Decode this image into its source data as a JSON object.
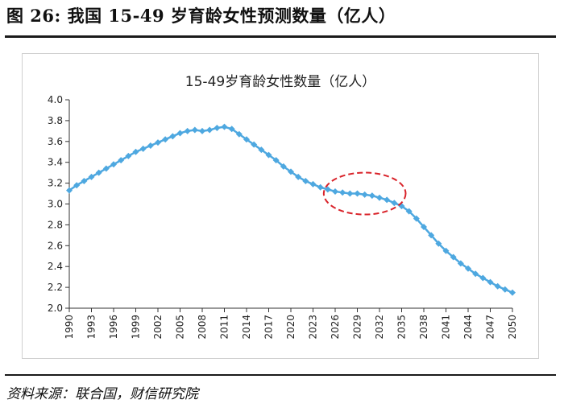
{
  "figure": {
    "title": "图 26:  我国 15-49 岁育龄女性预测数量（亿人）",
    "source": "资料来源：联合国，财信研究院"
  },
  "colors": {
    "series": "#4ea8e0",
    "highlight": "#d9232a",
    "axis": "#333333"
  },
  "chart_data": {
    "type": "line",
    "title": "15-49岁育龄女性数量（亿人）",
    "xlabel": "",
    "ylabel": "",
    "ylim": [
      2.0,
      4.0
    ],
    "yticks": [
      "2.0",
      "2.2",
      "2.4",
      "2.6",
      "2.8",
      "3.0",
      "3.2",
      "3.4",
      "3.6",
      "3.8",
      "4.0"
    ],
    "xticks": [
      "1990",
      "1993",
      "1996",
      "1999",
      "2002",
      "2005",
      "2008",
      "2011",
      "2014",
      "2017",
      "2020",
      "2023",
      "2026",
      "2029",
      "2032",
      "2035",
      "2038",
      "2041",
      "2044",
      "2047",
      "2050"
    ],
    "x": [
      1990,
      1991,
      1992,
      1993,
      1994,
      1995,
      1996,
      1997,
      1998,
      1999,
      2000,
      2001,
      2002,
      2003,
      2004,
      2005,
      2006,
      2007,
      2008,
      2009,
      2010,
      2011,
      2012,
      2013,
      2014,
      2015,
      2016,
      2017,
      2018,
      2019,
      2020,
      2021,
      2022,
      2023,
      2024,
      2025,
      2026,
      2027,
      2028,
      2029,
      2030,
      2031,
      2032,
      2033,
      2034,
      2035,
      2036,
      2037,
      2038,
      2039,
      2040,
      2041,
      2042,
      2043,
      2044,
      2045,
      2046,
      2047,
      2048,
      2049,
      2050
    ],
    "series": [
      {
        "values": [
          3.13,
          3.18,
          3.22,
          3.26,
          3.3,
          3.34,
          3.38,
          3.42,
          3.46,
          3.5,
          3.53,
          3.56,
          3.59,
          3.62,
          3.65,
          3.68,
          3.7,
          3.71,
          3.7,
          3.71,
          3.73,
          3.74,
          3.72,
          3.67,
          3.62,
          3.57,
          3.52,
          3.47,
          3.42,
          3.36,
          3.31,
          3.26,
          3.22,
          3.19,
          3.16,
          3.14,
          3.12,
          3.11,
          3.1,
          3.1,
          3.09,
          3.08,
          3.06,
          3.04,
          3.01,
          2.98,
          2.93,
          2.86,
          2.78,
          2.7,
          2.62,
          2.55,
          2.49,
          2.43,
          2.38,
          2.33,
          2.29,
          2.25,
          2.21,
          2.18,
          2.15
        ]
      }
    ],
    "annotation": {
      "shape": "dashed-ellipse",
      "x_range": [
        2025,
        2035
      ],
      "y_center": 3.1
    },
    "grid": false,
    "legend": "none"
  }
}
